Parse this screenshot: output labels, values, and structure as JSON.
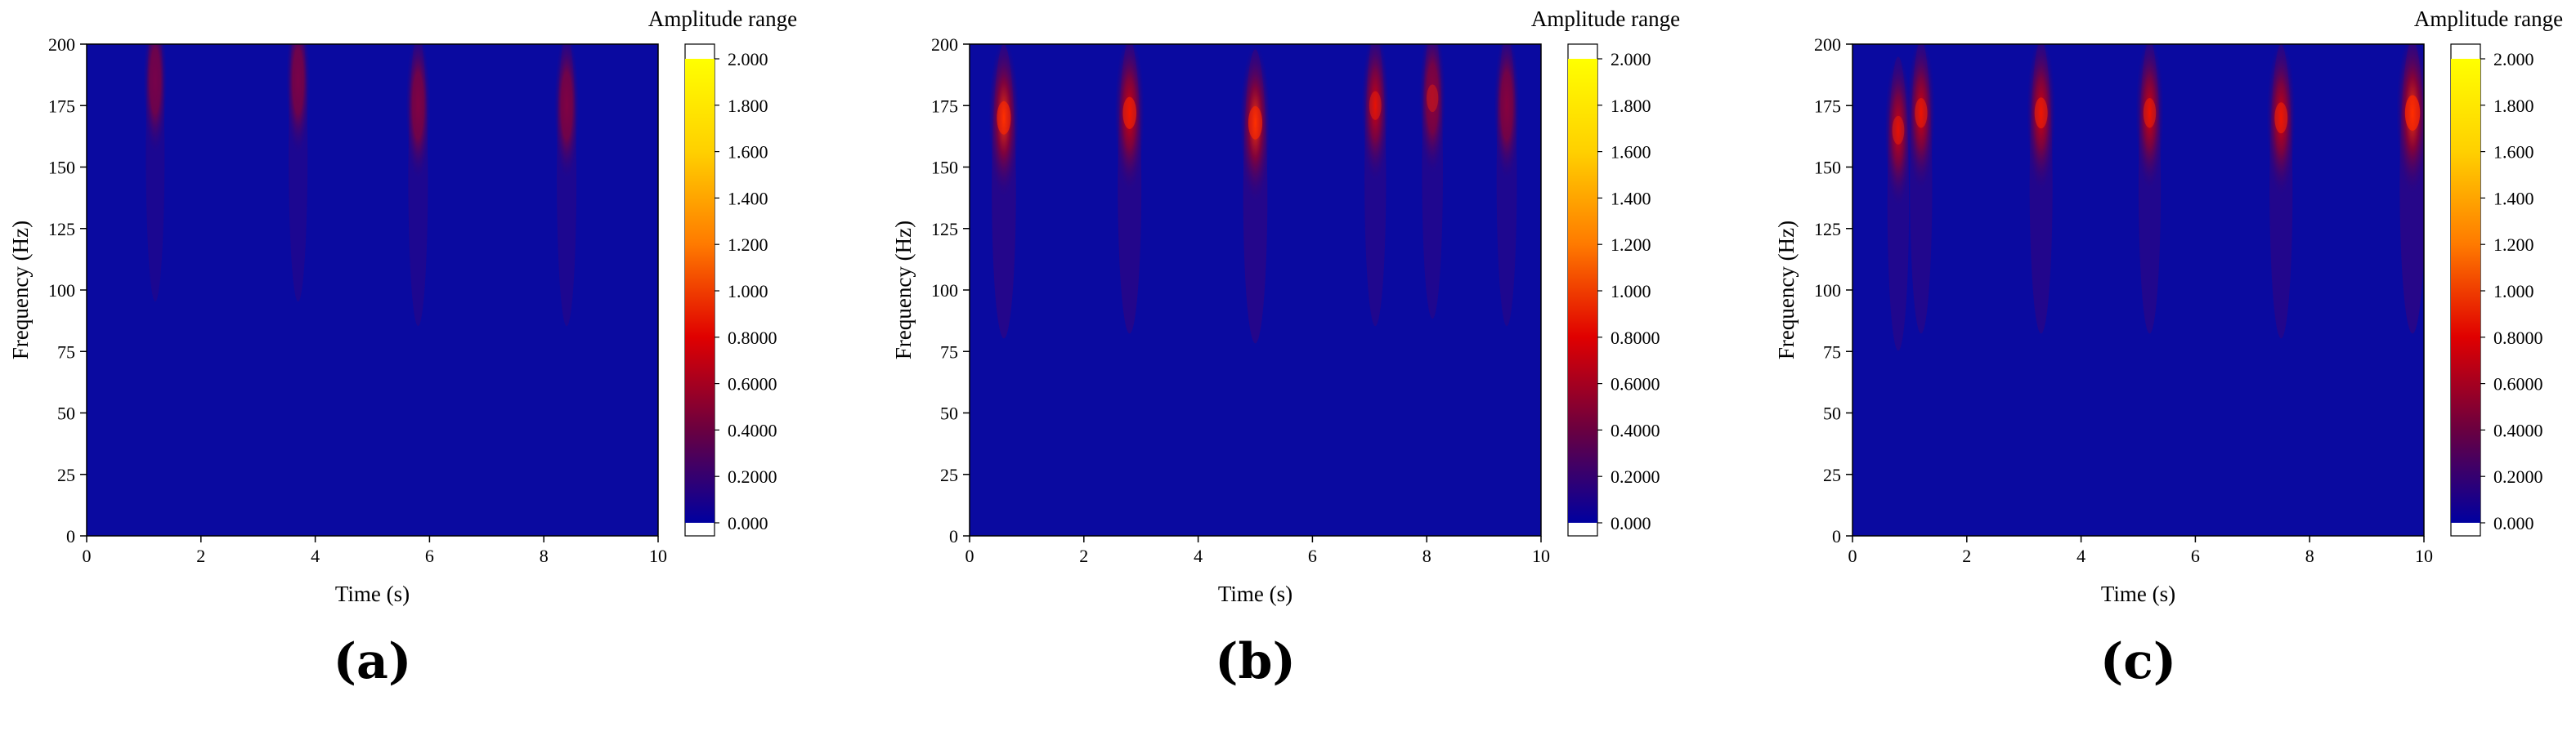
{
  "colors": {
    "background": "#0a0aa0",
    "colormap": [
      "#0000a0",
      "#6a0040",
      "#e00000",
      "#ff7a00",
      "#ffd000",
      "#ffff00"
    ]
  },
  "panel_labels": [
    "(a)",
    "(b)",
    "(c)"
  ],
  "chart_data": [
    {
      "type": "heatmap",
      "title": "",
      "xlabel": "Time (s)",
      "ylabel": "Frequency (Hz)",
      "xlim": [
        0,
        10
      ],
      "ylim": [
        0,
        200
      ],
      "xticks": [
        0,
        2,
        4,
        6,
        8,
        10
      ],
      "yticks": [
        0,
        25,
        50,
        75,
        100,
        125,
        150,
        175,
        200
      ],
      "colorbar": {
        "label": "Amplitude range",
        "range": [
          0,
          2.0
        ],
        "tick_values": [
          0,
          0.2,
          0.4,
          0.6,
          0.8,
          1.0,
          1.2,
          1.4,
          1.6,
          1.8,
          2.0
        ],
        "tick_labels": [
          "0.000",
          "0.2000",
          "0.4000",
          "0.6000",
          "0.8000",
          "1.000",
          "1.200",
          "1.400",
          "1.600",
          "1.800",
          "2.000"
        ]
      },
      "hotspots": [
        {
          "time": 1.2,
          "freq": 185,
          "amplitude": 0.35
        },
        {
          "time": 3.7,
          "freq": 185,
          "amplitude": 0.4
        },
        {
          "time": 5.8,
          "freq": 175,
          "amplitude": 0.5
        },
        {
          "time": 8.4,
          "freq": 175,
          "amplitude": 0.5
        }
      ]
    },
    {
      "type": "heatmap",
      "title": "",
      "xlabel": "Time (s)",
      "ylabel": "Frequency (Hz)",
      "xlim": [
        0,
        10
      ],
      "ylim": [
        0,
        200
      ],
      "xticks": [
        0,
        2,
        4,
        6,
        8,
        10
      ],
      "yticks": [
        0,
        25,
        50,
        75,
        100,
        125,
        150,
        175,
        200
      ],
      "colorbar": {
        "label": "Amplitude range",
        "range": [
          0,
          2.0
        ],
        "tick_values": [
          0,
          0.2,
          0.4,
          0.6,
          0.8,
          1.0,
          1.2,
          1.4,
          1.6,
          1.8,
          2.0
        ],
        "tick_labels": [
          "0.000",
          "0.2000",
          "0.4000",
          "0.6000",
          "0.8000",
          "1.000",
          "1.200",
          "1.400",
          "1.600",
          "1.800",
          "2.000"
        ]
      },
      "hotspots": [
        {
          "time": 0.6,
          "freq": 170,
          "amplitude": 1.2
        },
        {
          "time": 2.8,
          "freq": 172,
          "amplitude": 1.1
        },
        {
          "time": 5.0,
          "freq": 168,
          "amplitude": 1.2
        },
        {
          "time": 7.1,
          "freq": 175,
          "amplitude": 0.8
        },
        {
          "time": 8.1,
          "freq": 178,
          "amplitude": 0.7
        },
        {
          "time": 9.4,
          "freq": 175,
          "amplitude": 0.6
        }
      ]
    },
    {
      "type": "heatmap",
      "title": "",
      "xlabel": "Time (s)",
      "ylabel": "Frequency (Hz)",
      "xlim": [
        0,
        10
      ],
      "ylim": [
        0,
        200
      ],
      "xticks": [
        0,
        2,
        4,
        6,
        8,
        10
      ],
      "yticks": [
        0,
        25,
        50,
        75,
        100,
        125,
        150,
        175,
        200
      ],
      "colorbar": {
        "label": "Amplitude range",
        "range": [
          0,
          2.0
        ],
        "tick_values": [
          0,
          0.2,
          0.4,
          0.6,
          0.8,
          1.0,
          1.2,
          1.4,
          1.6,
          1.8,
          2.0
        ],
        "tick_labels": [
          "0.000",
          "0.2000",
          "0.4000",
          "0.6000",
          "0.8000",
          "1.000",
          "1.200",
          "1.400",
          "1.600",
          "1.800",
          "2.000"
        ]
      },
      "hotspots": [
        {
          "time": 0.8,
          "freq": 165,
          "amplitude": 0.8
        },
        {
          "time": 1.2,
          "freq": 172,
          "amplitude": 0.9
        },
        {
          "time": 3.3,
          "freq": 172,
          "amplitude": 1.0
        },
        {
          "time": 5.2,
          "freq": 172,
          "amplitude": 0.9
        },
        {
          "time": 7.5,
          "freq": 170,
          "amplitude": 1.0
        },
        {
          "time": 9.8,
          "freq": 172,
          "amplitude": 1.4
        }
      ]
    }
  ]
}
